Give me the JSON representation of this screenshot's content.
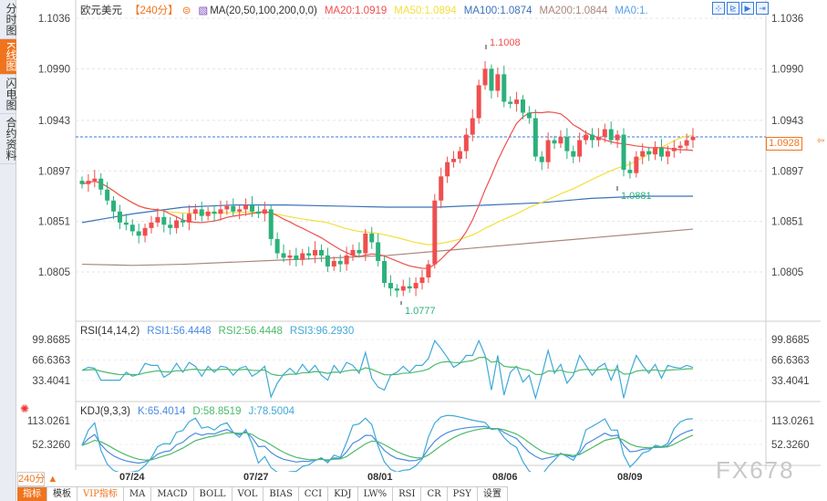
{
  "side_tabs": [
    {
      "label": "分时图"
    },
    {
      "label": "K线图"
    },
    {
      "label": "闪电图"
    },
    {
      "label": "合约资料"
    }
  ],
  "header": {
    "symbol": "欧元美元",
    "period": "【240分】",
    "ma_params": "MA(20,50,100,200,0,0)",
    "ma20": "MA20:1.0919",
    "ma50": "MA50:1.0894",
    "ma100": "MA100:1.0874",
    "ma200": "MA200:1.0844",
    "ma0": "MA0:1."
  },
  "toolbar": [
    {
      "icon": "crosshair-icon",
      "label": "⊹"
    },
    {
      "icon": "zoom-in-icon",
      "label": "⊵"
    },
    {
      "icon": "play-icon",
      "label": "▶"
    },
    {
      "icon": "jump-end-icon",
      "label": "⇥"
    }
  ],
  "colors": {
    "up": "#ef4f4f",
    "down": "#2bb17b",
    "ma20": "#ef4f4f",
    "ma50": "#f3df3c",
    "ma100": "#3b72b8",
    "ma200": "#a9877a",
    "accent": "#f0741e",
    "current": "#3a7bd5"
  },
  "chart_data": {
    "type": "candlestick",
    "price_ticks": [
      "1.1036",
      "1.0990",
      "1.0943",
      "1.0897",
      "1.0851",
      "1.0805"
    ],
    "tick_values": [
      1.1036,
      1.099,
      1.0943,
      1.0897,
      1.0851,
      1.0805
    ],
    "current_price": "1.0928",
    "high_label": "1.1008",
    "low_label": "1.0777",
    "mark_label": "1.0881",
    "dates": [
      "07/24",
      "07/27",
      "08/01",
      "08/06",
      "08/09"
    ],
    "closes": [
      1.0885,
      1.0888,
      1.089,
      1.088,
      1.087,
      1.086,
      1.085,
      1.0848,
      1.0842,
      1.0838,
      1.0845,
      1.085,
      1.0855,
      1.0848,
      1.0845,
      1.0852,
      1.085,
      1.0858,
      1.0862,
      1.0856,
      1.086,
      1.0858,
      1.0862,
      1.0865,
      1.086,
      1.0862,
      1.0866,
      1.086,
      1.0858,
      1.0862,
      1.0835,
      1.0822,
      1.0818,
      1.082,
      1.0816,
      1.0822,
      1.082,
      1.0825,
      1.082,
      1.081,
      1.0815,
      1.0812,
      1.082,
      1.0825,
      1.0822,
      1.084,
      1.0832,
      1.0815,
      1.0795,
      1.079,
      1.0788,
      1.0792,
      1.079,
      1.0795,
      1.08,
      1.0812,
      1.087,
      1.0892,
      1.0905,
      1.0908,
      1.0915,
      1.093,
      1.0945,
      1.0975,
      1.099,
      1.097,
      1.0985,
      1.096,
      1.0958,
      1.0962,
      1.095,
      1.0945,
      1.091,
      1.0905,
      1.0925,
      1.0922,
      1.0928,
      1.0915,
      1.091,
      1.0925,
      1.093,
      1.0925,
      1.0928,
      1.0935,
      1.0925,
      1.093,
      1.0898,
      1.0895,
      1.091,
      1.0915,
      1.0912,
      1.0918,
      1.091,
      1.0915,
      1.0918,
      1.092,
      1.0925,
      1.0928
    ],
    "ma100": [
      1.085,
      1.0858,
      1.0864,
      1.0866,
      1.0866,
      1.0865,
      1.0864,
      1.0864,
      1.0866,
      1.0868,
      1.0872,
      1.0874,
      1.0874
    ],
    "ma200": [
      1.0812,
      1.0811,
      1.0812,
      1.0814,
      1.0816,
      1.0818,
      1.082,
      1.0824,
      1.0828,
      1.0832,
      1.0836,
      1.084,
      1.0844
    ],
    "rsi": {
      "label": "RSI(14,14,2)",
      "rsi1": "RSI1:56.4448",
      "rsi2": "RSI2:56.4448",
      "rsi3": "RSI3:96.2930",
      "ticks": [
        "99.8685",
        "66.6363",
        "33.4041"
      ],
      "tick_values": [
        99.8685,
        66.6363,
        33.4041
      ]
    },
    "kdj": {
      "label": "KDJ(9,3,3)",
      "k": "K:65.4014",
      "d": "D:58.8519",
      "j": "J:78.5004",
      "ticks": [
        "113.0261",
        "52.3260"
      ],
      "tick_values": [
        113.0261,
        52.326
      ]
    }
  },
  "period_button": "240分 ▲",
  "bottom_bar": [
    "指标",
    "模板",
    "VIP指标",
    "MA",
    "MACD",
    "BOLL",
    "VOL",
    "BIAS",
    "CCI",
    "KDJ",
    "LW%",
    "RSI",
    "CR",
    "PSY",
    "设置"
  ],
  "watermark": "FX678"
}
